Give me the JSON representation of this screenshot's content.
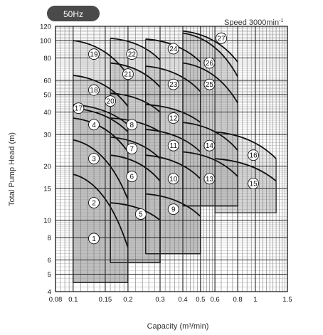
{
  "badge": "50Hz",
  "speed": {
    "text": "Speed 3000min",
    "sup": "-1"
  },
  "chart_data": {
    "type": "area",
    "title": "",
    "xlabel": "Capacity (m³/min)",
    "ylabel": "Total Pump Head (m)",
    "x_scale": "log",
    "y_scale": "log",
    "xlim": [
      0.08,
      1.5
    ],
    "ylim": [
      4,
      120
    ],
    "x_ticks": [
      {
        "v": 0.08,
        "label": "0.08"
      },
      {
        "v": 0.1,
        "label": "0.1"
      },
      {
        "v": 0.15,
        "label": "0.15"
      },
      {
        "v": 0.2,
        "label": "0.2"
      },
      {
        "v": 0.3,
        "label": "0.3"
      },
      {
        "v": 0.4,
        "label": "0.4"
      },
      {
        "v": 0.5,
        "label": "0.5"
      },
      {
        "v": 0.6,
        "label": "0.6"
      },
      {
        "v": 0.8,
        "label": "0.8"
      },
      {
        "v": 1,
        "label": "1"
      },
      {
        "v": 1.5,
        "label": "1.5"
      }
    ],
    "y_ticks": [
      {
        "v": 4,
        "label": "4"
      },
      {
        "v": 5,
        "label": "5"
      },
      {
        "v": 6,
        "label": "6"
      },
      {
        "v": 8,
        "label": "8"
      },
      {
        "v": 10,
        "label": "10"
      },
      {
        "v": 15,
        "label": "15"
      },
      {
        "v": 20,
        "label": "20"
      },
      {
        "v": 30,
        "label": "30"
      },
      {
        "v": 40,
        "label": "40"
      },
      {
        "v": 50,
        "label": "50"
      },
      {
        "v": 60,
        "label": "60"
      },
      {
        "v": 80,
        "label": "80"
      },
      {
        "v": 100,
        "label": "100"
      },
      {
        "v": 120,
        "label": "120"
      }
    ],
    "grid": true,
    "zones": [
      {
        "label": "1",
        "q_min": 0.1,
        "q_max": 0.2,
        "h_min": 4.5,
        "h_top_left": 18,
        "h_top_right": 7,
        "label_pos": [
          0.13,
          7.9
        ]
      },
      {
        "label": "2",
        "q_min": 0.1,
        "q_max": 0.2,
        "h_min": 4.5,
        "h_top_left": 28,
        "h_top_right": 13,
        "label_pos": [
          0.13,
          12.5
        ]
      },
      {
        "label": "3",
        "q_min": 0.1,
        "q_max": 0.2,
        "h_min": 4.5,
        "h_top_left": 37,
        "h_top_right": 24,
        "label_pos": [
          0.13,
          22
        ]
      },
      {
        "label": "4",
        "q_min": 0.1,
        "q_max": 0.2,
        "h_min": 4.5,
        "h_top_left": 42,
        "h_top_right": 31,
        "label_pos": [
          0.13,
          34
        ]
      },
      {
        "label": "5",
        "q_min": 0.16,
        "q_max": 0.3,
        "h_min": 5.8,
        "h_top_left": 12.5,
        "h_top_right": 10,
        "label_pos": [
          0.235,
          10.8
        ]
      },
      {
        "label": "6",
        "q_min": 0.16,
        "q_max": 0.3,
        "h_min": 5.8,
        "h_top_left": 23,
        "h_top_right": 16.5,
        "label_pos": [
          0.21,
          17.5
        ]
      },
      {
        "label": "7",
        "q_min": 0.16,
        "q_max": 0.3,
        "h_min": 5.8,
        "h_top_left": 29,
        "h_top_right": 22,
        "label_pos": [
          0.21,
          25
        ]
      },
      {
        "label": "8",
        "q_min": 0.16,
        "q_max": 0.3,
        "h_min": 5.8,
        "h_top_left": 37,
        "h_top_right": 31,
        "label_pos": [
          0.21,
          34
        ]
      },
      {
        "label": "9",
        "q_min": 0.25,
        "q_max": 0.5,
        "h_min": 6.5,
        "h_top_left": 14,
        "h_top_right": 10.5,
        "label_pos": [
          0.355,
          11.5
        ]
      },
      {
        "label": "10",
        "q_min": 0.25,
        "q_max": 0.5,
        "h_min": 6.5,
        "h_top_left": 23,
        "h_top_right": 17,
        "label_pos": [
          0.355,
          17
        ]
      },
      {
        "label": "11",
        "q_min": 0.25,
        "q_max": 0.5,
        "h_min": 6.5,
        "h_top_left": 32,
        "h_top_right": 24,
        "label_pos": [
          0.355,
          26
        ]
      },
      {
        "label": "12",
        "q_min": 0.25,
        "q_max": 0.5,
        "h_min": 6.5,
        "h_top_left": 44,
        "h_top_right": 35,
        "label_pos": [
          0.355,
          37
        ]
      },
      {
        "label": "13",
        "q_min": 0.4,
        "q_max": 0.8,
        "h_min": 12,
        "h_top_left": 24,
        "h_top_right": 17.5,
        "label_pos": [
          0.56,
          17
        ]
      },
      {
        "label": "14",
        "q_min": 0.4,
        "q_max": 0.8,
        "h_min": 12,
        "h_top_left": 35,
        "h_top_right": 24.5,
        "label_pos": [
          0.56,
          26
        ]
      },
      {
        "label": "15",
        "q_min": 0.6,
        "q_max": 1.3,
        "h_min": 11,
        "h_top_left": 22,
        "h_top_right": 16.5,
        "label_pos": [
          0.975,
          16
        ]
      },
      {
        "label": "16",
        "q_min": 0.6,
        "q_max": 1.3,
        "h_min": 11,
        "h_top_left": 31,
        "h_top_right": 22,
        "label_pos": [
          0.975,
          23
        ]
      },
      {
        "label": "17",
        "q_min": 0.1,
        "q_max": 0.2,
        "h_min": 4.5,
        "h_top_left": 44,
        "h_top_right": 34,
        "label_pos": [
          0.107,
          42
        ]
      },
      {
        "label": "18",
        "q_min": 0.1,
        "q_max": 0.2,
        "h_min": 4.5,
        "h_top_left": 64,
        "h_top_right": 43,
        "label_pos": [
          0.13,
          53
        ]
      },
      {
        "label": "19",
        "q_min": 0.1,
        "q_max": 0.2,
        "h_min": 4.5,
        "h_top_left": 100,
        "h_top_right": 64,
        "label_pos": [
          0.13,
          84
        ]
      },
      {
        "label": "20",
        "q_min": 0.16,
        "q_max": 0.3,
        "h_min": 5.8,
        "h_top_left": 51,
        "h_top_right": 40,
        "label_pos": [
          0.16,
          46
        ]
      },
      {
        "label": "21",
        "q_min": 0.16,
        "q_max": 0.3,
        "h_min": 5.8,
        "h_top_left": 75,
        "h_top_right": 55,
        "label_pos": [
          0.2,
          65
        ]
      },
      {
        "label": "22",
        "q_min": 0.16,
        "q_max": 0.3,
        "h_min": 5.8,
        "h_top_left": 103,
        "h_top_right": 78,
        "label_pos": [
          0.21,
          84
        ]
      },
      {
        "label": "23",
        "q_min": 0.25,
        "q_max": 0.5,
        "h_min": 6.5,
        "h_top_left": 72,
        "h_top_right": 52,
        "label_pos": [
          0.355,
          57
        ]
      },
      {
        "label": "24",
        "q_min": 0.25,
        "q_max": 0.5,
        "h_min": 6.5,
        "h_top_left": 102,
        "h_top_right": 76,
        "label_pos": [
          0.355,
          90
        ]
      },
      {
        "label": "25",
        "q_min": 0.4,
        "q_max": 0.8,
        "h_min": 12,
        "h_top_left": 75,
        "h_top_right": 45,
        "label_pos": [
          0.56,
          57
        ]
      },
      {
        "label": "26",
        "q_min": 0.4,
        "q_max": 0.8,
        "h_min": 12,
        "h_top_left": 110,
        "h_top_right": 63,
        "label_pos": [
          0.56,
          75
        ]
      },
      {
        "label": "27",
        "q_min": 0.4,
        "q_max": 0.8,
        "h_min": 12,
        "h_top_left": 113,
        "h_top_right": 76,
        "label_pos": [
          0.65,
          103
        ]
      }
    ]
  }
}
